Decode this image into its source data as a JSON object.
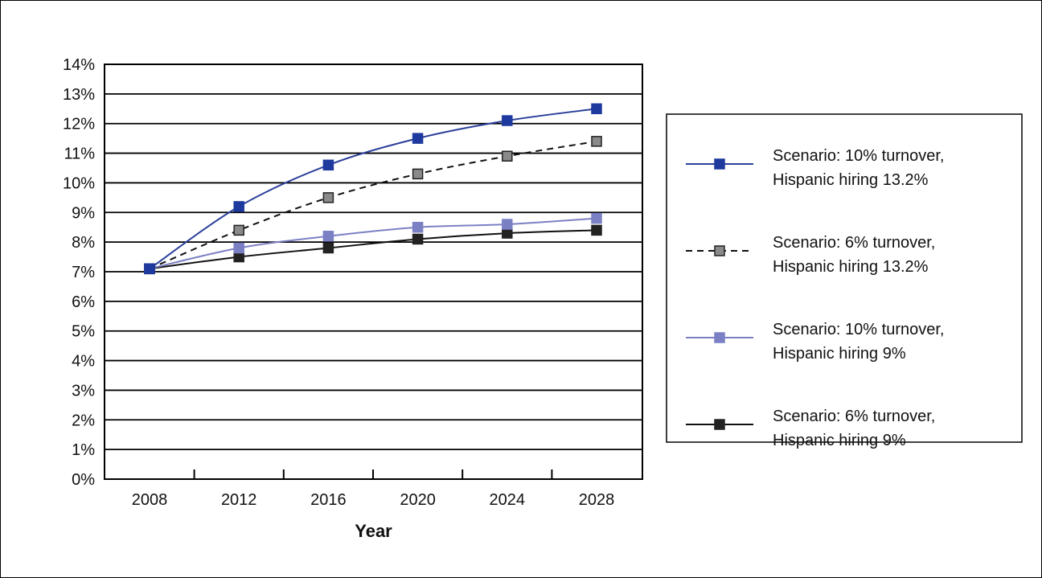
{
  "chart_data": {
    "type": "line",
    "x": [
      2008,
      2012,
      2016,
      2020,
      2024,
      2028
    ],
    "xlabel": "Year",
    "ylabel": "",
    "ylim": [
      0,
      14
    ],
    "y_ticks": [
      "0%",
      "1%",
      "2%",
      "3%",
      "4%",
      "5%",
      "6%",
      "7%",
      "8%",
      "9%",
      "10%",
      "11%",
      "12%",
      "13%",
      "14%"
    ],
    "grid": "horizontal",
    "legend_position": "right",
    "series": [
      {
        "name": "Scenario:  10% turnover, Hispanic hiring 13.2%",
        "name_lines": [
          "Scenario:  10% turnover,",
          "Hispanic hiring 13.2%"
        ],
        "values": [
          7.1,
          9.2,
          10.6,
          11.5,
          12.1,
          12.5
        ],
        "line_color": "#2a3f9a",
        "marker_color": "#1f3a9e",
        "dashed": false
      },
      {
        "name": "Scenario:  6% turnover, Hispanic hiring 13.2%",
        "name_lines": [
          "Scenario:  6% turnover,",
          "Hispanic hiring 13.2%"
        ],
        "values": [
          7.1,
          8.4,
          9.5,
          10.3,
          10.9,
          11.4
        ],
        "line_color": "#111111",
        "marker_color": "#8a8a8a",
        "dashed": true
      },
      {
        "name": "Scenario:  10% turnover, Hispanic hiring 9%",
        "name_lines": [
          "Scenario:  10% turnover,",
          "Hispanic hiring 9%"
        ],
        "values": [
          7.1,
          7.8,
          8.2,
          8.5,
          8.6,
          8.8
        ],
        "line_color": "#7b80c4",
        "marker_color": "#7b80c4",
        "dashed": false
      },
      {
        "name": "Scenario:  6% turnover, Hispanic hiring 9%",
        "name_lines": [
          "Scenario:  6% turnover,",
          "Hispanic hiring 9%"
        ],
        "values": [
          7.1,
          7.5,
          7.8,
          8.1,
          8.3,
          8.4
        ],
        "line_color": "#111111",
        "marker_color": "#222222",
        "dashed": false
      }
    ]
  }
}
